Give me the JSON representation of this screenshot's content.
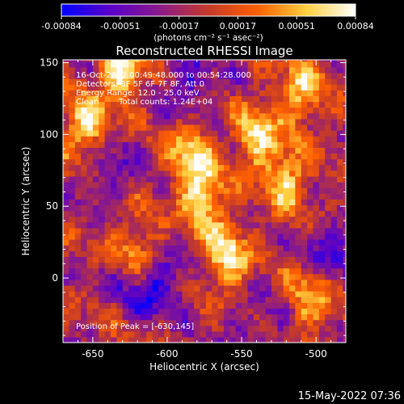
{
  "colorbar": {
    "tick_labels": [
      "-0.00084",
      "-0.00051",
      "-0.00017",
      "0.00017",
      "0.00051",
      "0.00084"
    ],
    "unit_label": "(photons cm⁻² s⁻¹ asec⁻²)",
    "colors": [
      "#0000ff",
      "#5a00c8",
      "#8a1a8a",
      "#c43a2a",
      "#ff6000",
      "#ffd040",
      "#ffffff"
    ]
  },
  "chart_data": {
    "type": "heatmap",
    "title": "Reconstructed RHESSI Image",
    "xlabel": "Heliocentric X (arcsec)",
    "ylabel": "Heliocentric Y (arcsec)",
    "xlim": [
      -670,
      -480
    ],
    "ylim": [
      -45,
      152
    ],
    "x_ticks": [
      -650,
      -600,
      -550,
      -500
    ],
    "y_ticks": [
      0,
      50,
      100,
      150
    ],
    "colorbar_range": [
      -0.00084,
      0.00084
    ],
    "annotations": {
      "time_range": "16-Oct-2012 00:49:48.000 to 00:54:28.000",
      "detectors": "Detectors: 3F 5F 6F 7F 8F, Att 0",
      "energy_range": "Energy Range: 12.0 - 25.0 keV",
      "clean_label": "Clean",
      "total_counts": "Total counts: 1.24E+04",
      "peak": "Position of Peak = [-630,145]"
    },
    "peak_position": [
      -630,
      145
    ],
    "bright_regions": [
      {
        "x": -630,
        "y": 145,
        "level": 1.0
      },
      {
        "x": -655,
        "y": 105,
        "level": 0.85
      },
      {
        "x": -585,
        "y": 85,
        "level": 0.75
      },
      {
        "x": -575,
        "y": 55,
        "level": 0.8
      },
      {
        "x": -560,
        "y": 15,
        "level": 0.85
      },
      {
        "x": -540,
        "y": 100,
        "level": 0.8
      },
      {
        "x": -520,
        "y": 70,
        "level": 0.75
      },
      {
        "x": -510,
        "y": 130,
        "level": 0.7
      },
      {
        "x": -620,
        "y": 20,
        "level": 0.6
      },
      {
        "x": -505,
        "y": -15,
        "level": 0.6
      }
    ],
    "dim_regions": [
      {
        "x": -610,
        "y": -5,
        "level": -0.9
      },
      {
        "x": -640,
        "y": 75,
        "level": -0.5
      },
      {
        "x": -585,
        "y": 135,
        "level": -0.6
      },
      {
        "x": -490,
        "y": 20,
        "level": -0.6
      },
      {
        "x": -540,
        "y": -35,
        "level": -0.4
      }
    ]
  },
  "footer": {
    "timestamp": "15-May-2022 07:36"
  }
}
